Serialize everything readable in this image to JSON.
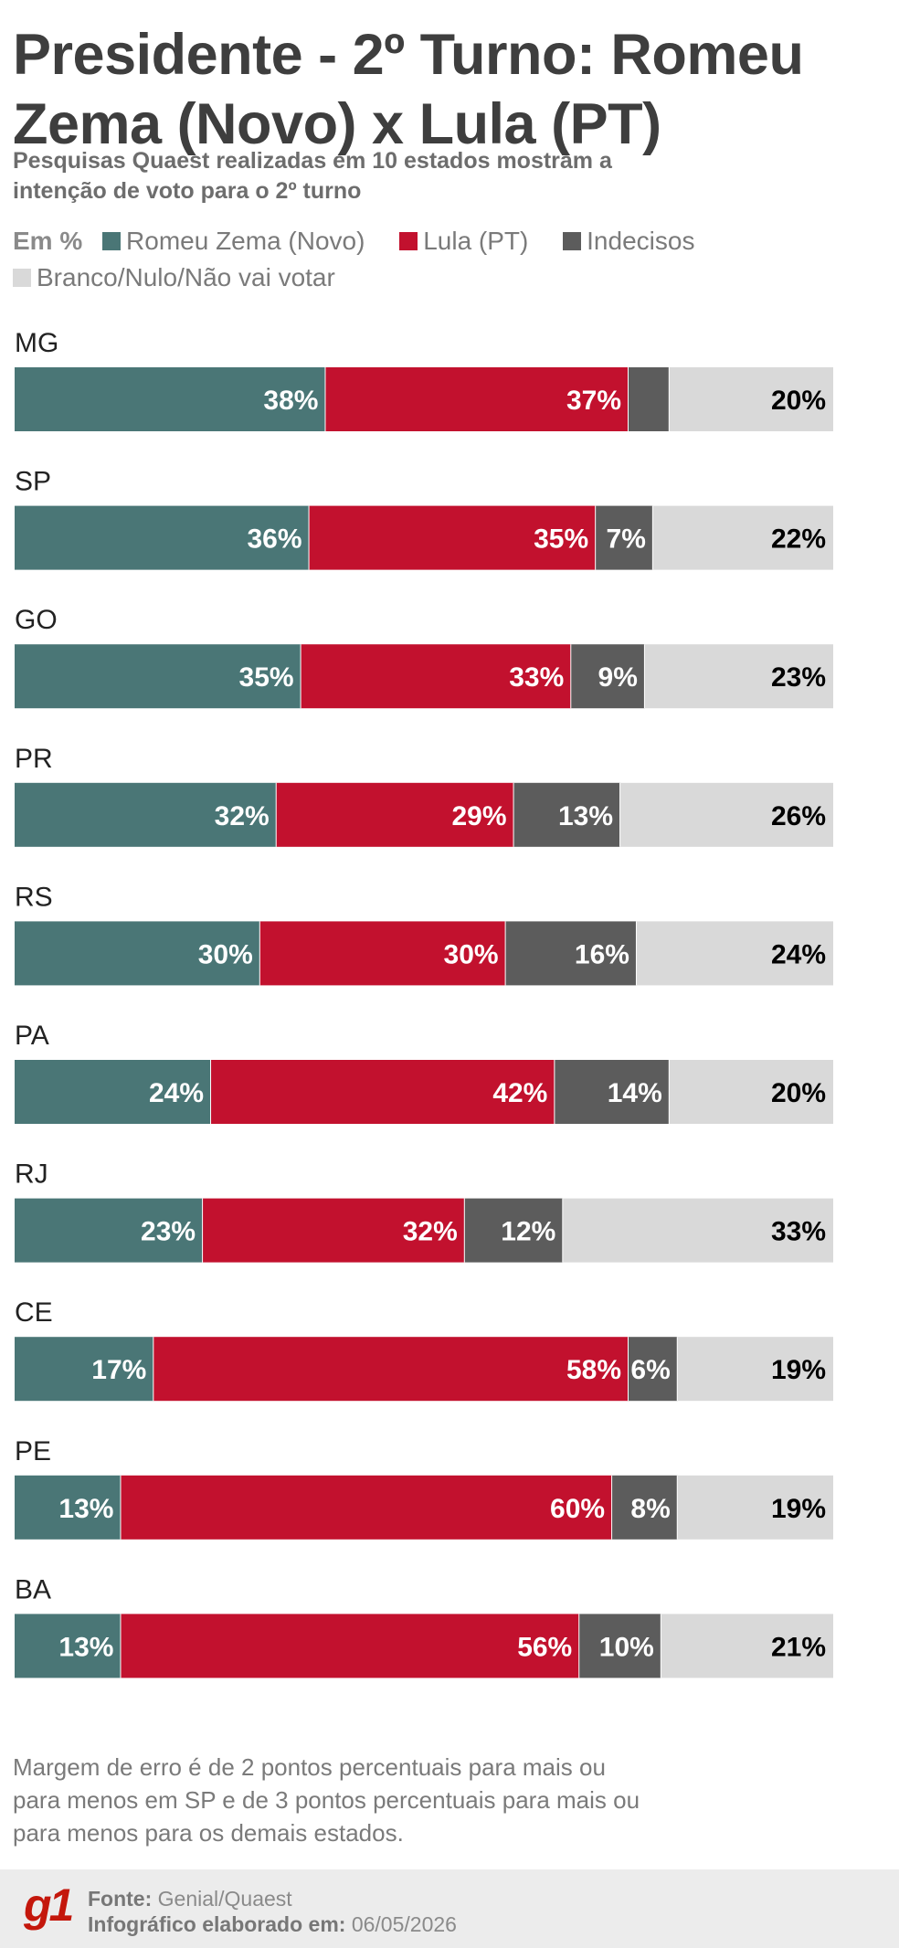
{
  "header": {
    "title": "Presidente - 2º Turno: Romeu Zema (Novo) x Lula (PT)",
    "subtitle": "Pesquisas Quaest realizadas em 10 estados mostram a intenção de voto para o 2º turno"
  },
  "legend": {
    "unit": "Em %",
    "items": [
      {
        "label": "Romeu Zema (Novo)",
        "color": "#4a7676"
      },
      {
        "label": "Lula (PT)",
        "color": "#c2112e"
      },
      {
        "label": "Indecisos",
        "color": "#5c5c5c"
      },
      {
        "label": "Branco/Nulo/Não vai votar",
        "color": "#d9d9d9"
      }
    ]
  },
  "chart_data": {
    "type": "bar",
    "orientation": "horizontal",
    "stacked": true,
    "unit": "%",
    "categories": [
      "MG",
      "SP",
      "GO",
      "PR",
      "RS",
      "PA",
      "RJ",
      "CE",
      "PE",
      "BA"
    ],
    "series": [
      {
        "name": "Romeu Zema (Novo)",
        "color": "#4a7676",
        "values": [
          38,
          36,
          35,
          32,
          30,
          24,
          23,
          17,
          13,
          13
        ]
      },
      {
        "name": "Lula (PT)",
        "color": "#c2112e",
        "values": [
          37,
          35,
          33,
          29,
          30,
          42,
          32,
          58,
          60,
          56
        ]
      },
      {
        "name": "Indecisos",
        "color": "#5c5c5c",
        "values": [
          5,
          7,
          9,
          13,
          16,
          14,
          12,
          6,
          8,
          10
        ]
      },
      {
        "name": "Branco/Nulo/Não vai votar",
        "color": "#d9d9d9",
        "values": [
          20,
          22,
          23,
          26,
          24,
          20,
          33,
          19,
          19,
          21
        ]
      }
    ],
    "value_labels": [
      [
        "38%",
        "36%",
        "35%",
        "32%",
        "30%",
        "24%",
        "23%",
        "17%",
        "13%",
        "13%"
      ],
      [
        "37%",
        "35%",
        "33%",
        "29%",
        "30%",
        "42%",
        "32%",
        "58%",
        "60%",
        "56%"
      ],
      [
        "",
        "7%",
        "9%",
        "13%",
        "16%",
        "14%",
        "12%",
        "6%",
        "8%",
        "10%"
      ],
      [
        "20%",
        "22%",
        "23%",
        "26%",
        "24%",
        "20%",
        "33%",
        "19%",
        "19%",
        "21%"
      ]
    ],
    "label_colors": [
      "#ffffff",
      "#ffffff",
      "#ffffff",
      "#000000"
    ],
    "xlim": [
      0,
      100
    ]
  },
  "note": "Margem de erro é de 2 pontos percentuais para mais ou para menos em SP e de 3 pontos percentuais para mais ou para menos para os demais estados.",
  "footer": {
    "logo": "g1",
    "source_label": "Fonte:",
    "source_value": "Genial/Quaest",
    "made_label": "Infográfico elaborado em:",
    "made_value": "06/05/2026"
  }
}
